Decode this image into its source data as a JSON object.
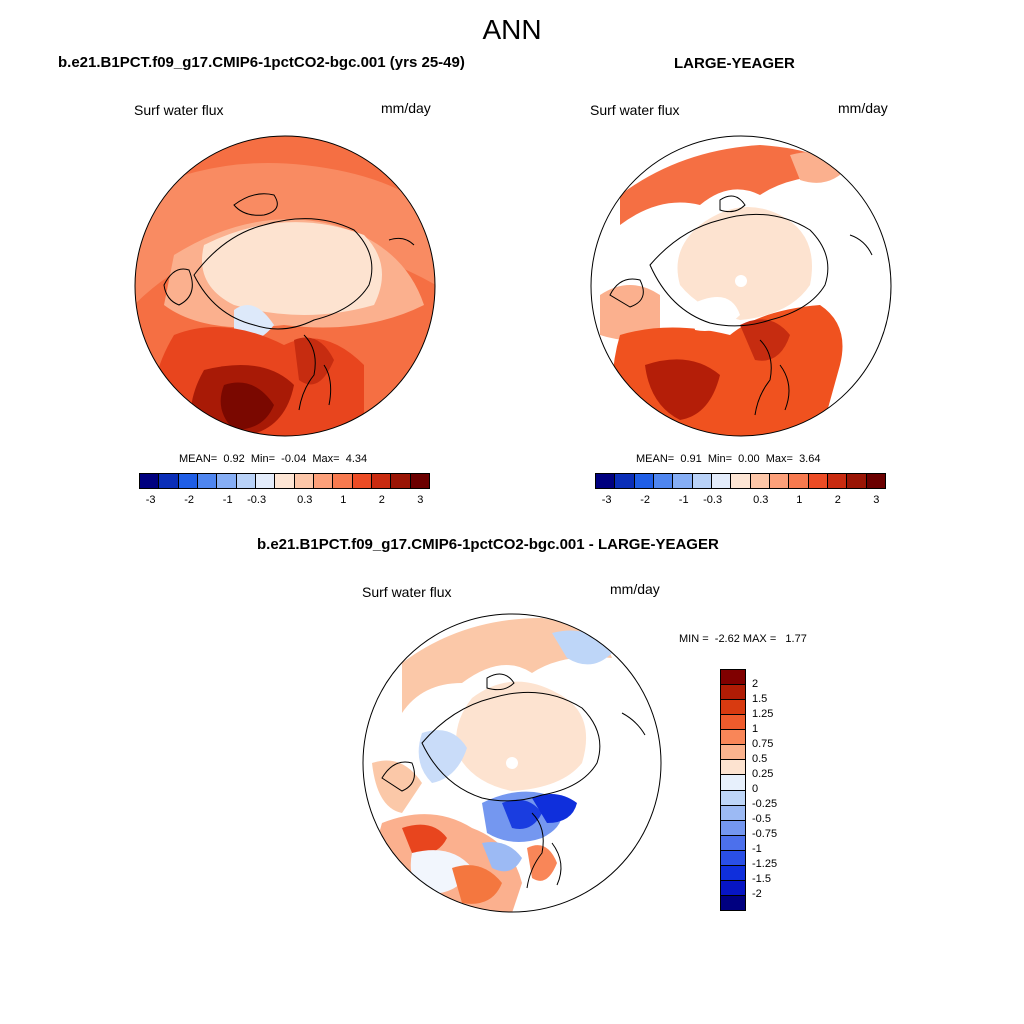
{
  "page": {
    "title": "ANN"
  },
  "panels": {
    "left": {
      "title": "b.e21.B1PCT.f09_g17.CMIP6-1pctCO2-bgc.001 (yrs 25-49)",
      "variable": "Surf water flux",
      "units": "mm/day",
      "stats": {
        "mean_label": "MEAN=",
        "mean": "0.92",
        "min_label": "Min=",
        "min": "-0.04",
        "max_label": "Max=",
        "max": "4.34"
      }
    },
    "right": {
      "title": "LARGE-YEAGER",
      "variable": "Surf water flux",
      "units": "mm/day",
      "stats": {
        "mean_label": "MEAN=",
        "mean": "0.91",
        "min_label": "Min=",
        "min": "0.00",
        "max_label": "Max=",
        "max": "3.64"
      }
    },
    "diff": {
      "title": "b.e21.B1PCT.f09_g17.CMIP6-1pctCO2-bgc.001 - LARGE-YEAGER",
      "variable": "Surf water flux",
      "units": "mm/day",
      "stats": {
        "min_label": "MIN =",
        "min": "-2.62",
        "max_label": "MAX =",
        "max": "1.77"
      }
    }
  },
  "colorbars": {
    "main": {
      "colors": [
        "#00007f",
        "#0a2eb8",
        "#1f5ee6",
        "#4f86f0",
        "#86aef5",
        "#b9d2f8",
        "#e3ecfb",
        "#fde5d4",
        "#fcc6a8",
        "#fca07a",
        "#f77a4f",
        "#ec4c25",
        "#c92b10",
        "#9a1505",
        "#6b0000"
      ],
      "tick_labels": [
        "-3",
        "-2",
        "-1",
        "-0.3",
        "0.3",
        "1",
        "2",
        "3"
      ]
    },
    "diff": {
      "colors": [
        "#800000",
        "#b01c05",
        "#d83a10",
        "#ef5b2c",
        "#f98658",
        "#fbb38e",
        "#fde3d0",
        "#e7f0fc",
        "#bed6f8",
        "#9cbaf4",
        "#7497f0",
        "#4c70ec",
        "#2a4fe6",
        "#0f2fdc",
        "#0715c4",
        "#000080"
      ],
      "tick_labels": [
        "2",
        "1.5",
        "1.25",
        "1",
        "0.75",
        "0.5",
        "0.25",
        "0",
        "-0.25",
        "-0.5",
        "-0.75",
        "-1",
        "-1.25",
        "-1.5",
        "-2"
      ]
    }
  }
}
